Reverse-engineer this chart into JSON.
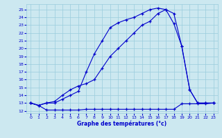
{
  "title": "Graphe des températures (°c)",
  "bg_color": "#cce8f0",
  "grid_color": "#99ccdd",
  "line_color": "#0000cc",
  "line_top_x": [
    0,
    1,
    2,
    3,
    4,
    5,
    6,
    7,
    8,
    9,
    10,
    11,
    12,
    13,
    14,
    15,
    16,
    17,
    18,
    19,
    20,
    21,
    22,
    23
  ],
  "line_top_y": [
    13.0,
    12.7,
    13.0,
    13.0,
    13.5,
    14.0,
    14.5,
    17.0,
    19.3,
    21.0,
    22.7,
    23.3,
    23.7,
    24.0,
    24.5,
    25.0,
    25.2,
    25.0,
    24.5,
    20.3,
    14.7,
    13.0,
    13.0,
    13.0
  ],
  "line_mid_x": [
    0,
    1,
    2,
    3,
    4,
    5,
    6,
    7,
    8,
    9,
    10,
    11,
    12,
    13,
    14,
    15,
    16,
    17,
    18,
    19,
    20,
    21,
    22,
    23
  ],
  "line_mid_y": [
    13.0,
    12.7,
    13.0,
    13.2,
    14.0,
    14.7,
    15.2,
    15.5,
    16.0,
    17.5,
    19.0,
    20.0,
    21.0,
    22.0,
    23.0,
    23.5,
    24.5,
    25.0,
    23.2,
    20.3,
    14.7,
    13.0,
    13.0,
    13.0
  ],
  "line_min_x": [
    0,
    1,
    2,
    3,
    4,
    5,
    6,
    7,
    8,
    9,
    10,
    11,
    12,
    13,
    14,
    15,
    16,
    17,
    18,
    19,
    20,
    21,
    22,
    23
  ],
  "line_min_y": [
    13.0,
    12.7,
    12.1,
    12.1,
    12.1,
    12.1,
    12.1,
    12.2,
    12.2,
    12.2,
    12.2,
    12.2,
    12.2,
    12.2,
    12.2,
    12.2,
    12.2,
    12.2,
    12.2,
    12.9,
    12.9,
    12.9,
    12.9,
    13.0
  ],
  "xlim": [
    -0.5,
    23.5
  ],
  "ylim": [
    11.7,
    25.7
  ],
  "xticks": [
    0,
    1,
    2,
    3,
    4,
    5,
    6,
    7,
    8,
    9,
    10,
    11,
    12,
    13,
    14,
    15,
    16,
    17,
    18,
    19,
    20,
    21,
    22,
    23
  ],
  "yticks": [
    12,
    13,
    14,
    15,
    16,
    17,
    18,
    19,
    20,
    21,
    22,
    23,
    24,
    25
  ]
}
